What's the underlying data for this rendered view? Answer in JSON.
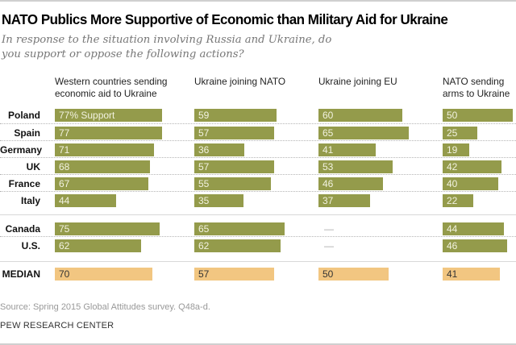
{
  "chart_data": {
    "type": "bar",
    "title": "NATO Publics More Supportive of Economic than Military Aid for Ukraine",
    "subtitle": "In response to the situation involving Russia and Ukraine, do you support or oppose the following actions?",
    "first_value_suffix": "% Support",
    "missing_symbol": "—",
    "xlim": [
      0,
      100
    ],
    "columns": [
      "Western countries sending economic aid to Ukraine",
      "Ukraine joining NATO",
      "Ukraine joining EU",
      "NATO sending arms to Ukraine"
    ],
    "columns_lines": [
      [
        "Western countries sending",
        "economic aid to Ukraine"
      ],
      [
        "Ukraine joining NATO"
      ],
      [
        "Ukraine joining EU"
      ],
      [
        "NATO sending",
        "arms to Ukraine"
      ]
    ],
    "categories": [
      "Poland",
      "Spain",
      "Germany",
      "UK",
      "France",
      "Italy",
      "Canada",
      "U.S.",
      "MEDIAN"
    ],
    "series": [
      {
        "name": "Western countries sending economic aid to Ukraine",
        "values": [
          77,
          77,
          71,
          68,
          67,
          44,
          75,
          62,
          70
        ]
      },
      {
        "name": "Ukraine joining NATO",
        "values": [
          59,
          57,
          36,
          57,
          55,
          35,
          65,
          62,
          57
        ]
      },
      {
        "name": "Ukraine joining EU",
        "values": [
          60,
          65,
          41,
          53,
          46,
          37,
          null,
          null,
          50
        ]
      },
      {
        "name": "NATO sending arms to Ukraine",
        "values": [
          50,
          25,
          19,
          42,
          40,
          22,
          44,
          46,
          41
        ]
      }
    ],
    "colors": {
      "bar": "#949b4b",
      "median": "#f2c681"
    }
  },
  "footer": {
    "source": "Source: Spring 2015 Global Attitudes survey. Q48a-d.",
    "credit": "PEW RESEARCH CENTER"
  }
}
